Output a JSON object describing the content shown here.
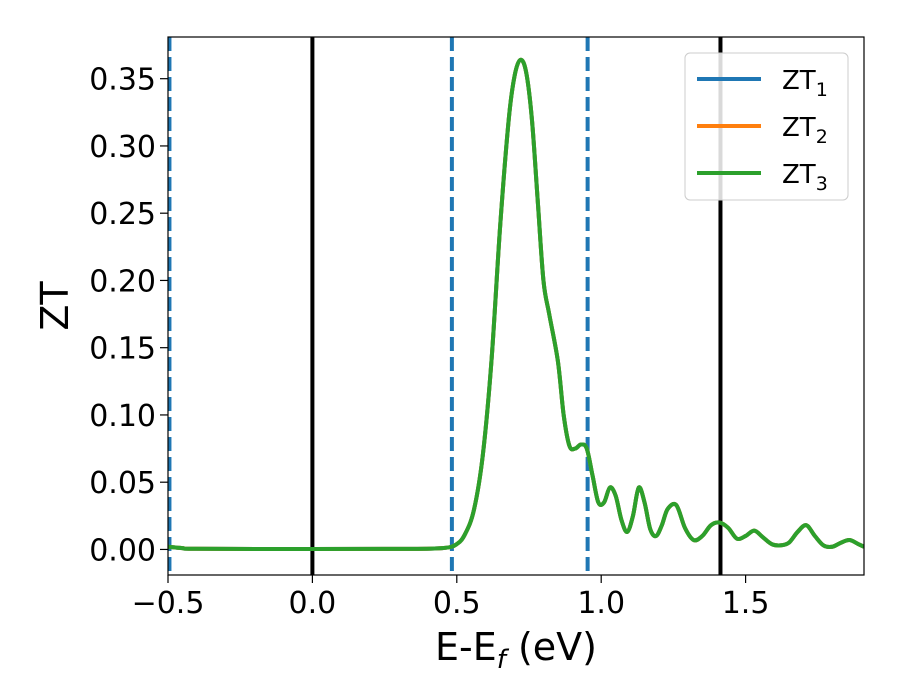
{
  "chart_data": {
    "type": "line",
    "xlabel": "E-E",
    "xlabel_sub": "f",
    "xlabel_unit": " (eV)",
    "ylabel": "ZT",
    "xlim": [
      -0.5,
      1.91
    ],
    "ylim": [
      -0.019,
      0.381
    ],
    "xticks": [
      -0.5,
      0.0,
      0.5,
      1.0,
      1.5
    ],
    "xtick_labels": [
      "−0.5",
      "0.0",
      "0.5",
      "1.0",
      "1.5"
    ],
    "yticks": [
      0.0,
      0.05,
      0.1,
      0.15,
      0.2,
      0.25,
      0.3,
      0.35
    ],
    "ytick_labels": [
      "0.00",
      "0.05",
      "0.10",
      "0.15",
      "0.20",
      "0.25",
      "0.30",
      "0.35"
    ],
    "grid": false,
    "legend_position": "top-right",
    "vlines": [
      {
        "x": -0.495,
        "style": "dashed",
        "color": "#1f77b4"
      },
      {
        "x": 0.0,
        "style": "solid",
        "color": "#000000"
      },
      {
        "x": 0.483,
        "style": "dashed",
        "color": "#1f77b4"
      },
      {
        "x": 0.953,
        "style": "dashed",
        "color": "#1f77b4"
      },
      {
        "x": 1.413,
        "style": "solid",
        "color": "#000000"
      }
    ],
    "series": [
      {
        "name": "ZT",
        "sub": "1",
        "color": "#1f77b4"
      },
      {
        "name": "ZT",
        "sub": "2",
        "color": "#ff7f0e"
      },
      {
        "name": "ZT",
        "sub": "3",
        "color": "#2ca02c"
      }
    ],
    "x": [
      -0.5,
      -0.45,
      -0.4,
      0.0,
      0.3,
      0.45,
      0.5,
      0.53,
      0.56,
      0.59,
      0.62,
      0.65,
      0.68,
      0.7,
      0.72,
      0.74,
      0.76,
      0.78,
      0.8,
      0.82,
      0.85,
      0.87,
      0.89,
      0.91,
      0.93,
      0.95,
      0.97,
      0.99,
      1.01,
      1.03,
      1.05,
      1.07,
      1.09,
      1.11,
      1.13,
      1.15,
      1.17,
      1.19,
      1.21,
      1.23,
      1.26,
      1.29,
      1.32,
      1.35,
      1.38,
      1.41,
      1.44,
      1.47,
      1.5,
      1.53,
      1.56,
      1.59,
      1.62,
      1.65,
      1.68,
      1.71,
      1.74,
      1.77,
      1.8,
      1.83,
      1.86,
      1.89,
      1.91
    ],
    "y": [
      0.002,
      0.001,
      0.0005,
      0.0003,
      0.0004,
      0.001,
      0.004,
      0.012,
      0.03,
      0.07,
      0.14,
      0.24,
      0.32,
      0.352,
      0.364,
      0.355,
      0.32,
      0.26,
      0.2,
      0.175,
      0.14,
      0.1,
      0.077,
      0.075,
      0.078,
      0.075,
      0.055,
      0.035,
      0.035,
      0.046,
      0.04,
      0.022,
      0.013,
      0.025,
      0.046,
      0.035,
      0.015,
      0.01,
      0.018,
      0.03,
      0.033,
      0.016,
      0.007,
      0.01,
      0.018,
      0.02,
      0.016,
      0.008,
      0.01,
      0.014,
      0.009,
      0.004,
      0.003,
      0.005,
      0.013,
      0.018,
      0.01,
      0.003,
      0.002,
      0.005,
      0.007,
      0.004,
      0.002
    ]
  }
}
